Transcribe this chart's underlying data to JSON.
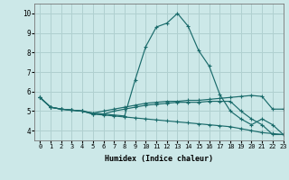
{
  "xlabel": "Humidex (Indice chaleur)",
  "xlim": [
    -0.5,
    23
  ],
  "ylim": [
    3.5,
    10.5
  ],
  "yticks": [
    4,
    5,
    6,
    7,
    8,
    9,
    10
  ],
  "xticks": [
    0,
    1,
    2,
    3,
    4,
    5,
    6,
    7,
    8,
    9,
    10,
    11,
    12,
    13,
    14,
    15,
    16,
    17,
    18,
    19,
    20,
    21,
    22,
    23
  ],
  "bg_color": "#cce8e8",
  "grid_color": "#b0d0d0",
  "line_color": "#1a6b6b",
  "line1_x": [
    0,
    1,
    2,
    3,
    4,
    5,
    6,
    7,
    8,
    9,
    10,
    11,
    12,
    13,
    14,
    15,
    16,
    17,
    18,
    19,
    20,
    21,
    22,
    23
  ],
  "line1_y": [
    5.7,
    5.2,
    5.1,
    5.05,
    5.0,
    4.9,
    4.85,
    4.8,
    4.75,
    6.6,
    8.3,
    9.3,
    9.5,
    10.0,
    9.35,
    8.1,
    7.3,
    5.85,
    5.0,
    4.6,
    4.3,
    4.6,
    4.3,
    3.8
  ],
  "line2_x": [
    0,
    1,
    2,
    3,
    4,
    5,
    6,
    7,
    8,
    9,
    10,
    11,
    12,
    13,
    14,
    15,
    16,
    17,
    18,
    19,
    20,
    21,
    22,
    23
  ],
  "line2_y": [
    5.7,
    5.2,
    5.1,
    5.05,
    5.0,
    4.9,
    5.0,
    5.1,
    5.2,
    5.3,
    5.4,
    5.45,
    5.5,
    5.5,
    5.55,
    5.55,
    5.6,
    5.65,
    5.7,
    5.75,
    5.8,
    5.75,
    5.1,
    5.1
  ],
  "line3_x": [
    0,
    1,
    2,
    3,
    4,
    5,
    6,
    7,
    8,
    9,
    10,
    11,
    12,
    13,
    14,
    15,
    16,
    17,
    18,
    19,
    20,
    21,
    22,
    23
  ],
  "line3_y": [
    5.7,
    5.2,
    5.1,
    5.05,
    5.0,
    4.85,
    4.85,
    5.0,
    5.1,
    5.2,
    5.3,
    5.35,
    5.4,
    5.45,
    5.45,
    5.45,
    5.5,
    5.5,
    5.5,
    5.0,
    4.6,
    4.3,
    3.8,
    3.8
  ],
  "line4_x": [
    0,
    1,
    2,
    3,
    4,
    5,
    6,
    7,
    8,
    9,
    10,
    11,
    12,
    13,
    14,
    15,
    16,
    17,
    18,
    19,
    20,
    21,
    22,
    23
  ],
  "line4_y": [
    5.7,
    5.2,
    5.1,
    5.05,
    5.0,
    4.85,
    4.8,
    4.75,
    4.7,
    4.65,
    4.6,
    4.55,
    4.5,
    4.45,
    4.4,
    4.35,
    4.3,
    4.25,
    4.2,
    4.1,
    4.0,
    3.9,
    3.85,
    3.8
  ]
}
